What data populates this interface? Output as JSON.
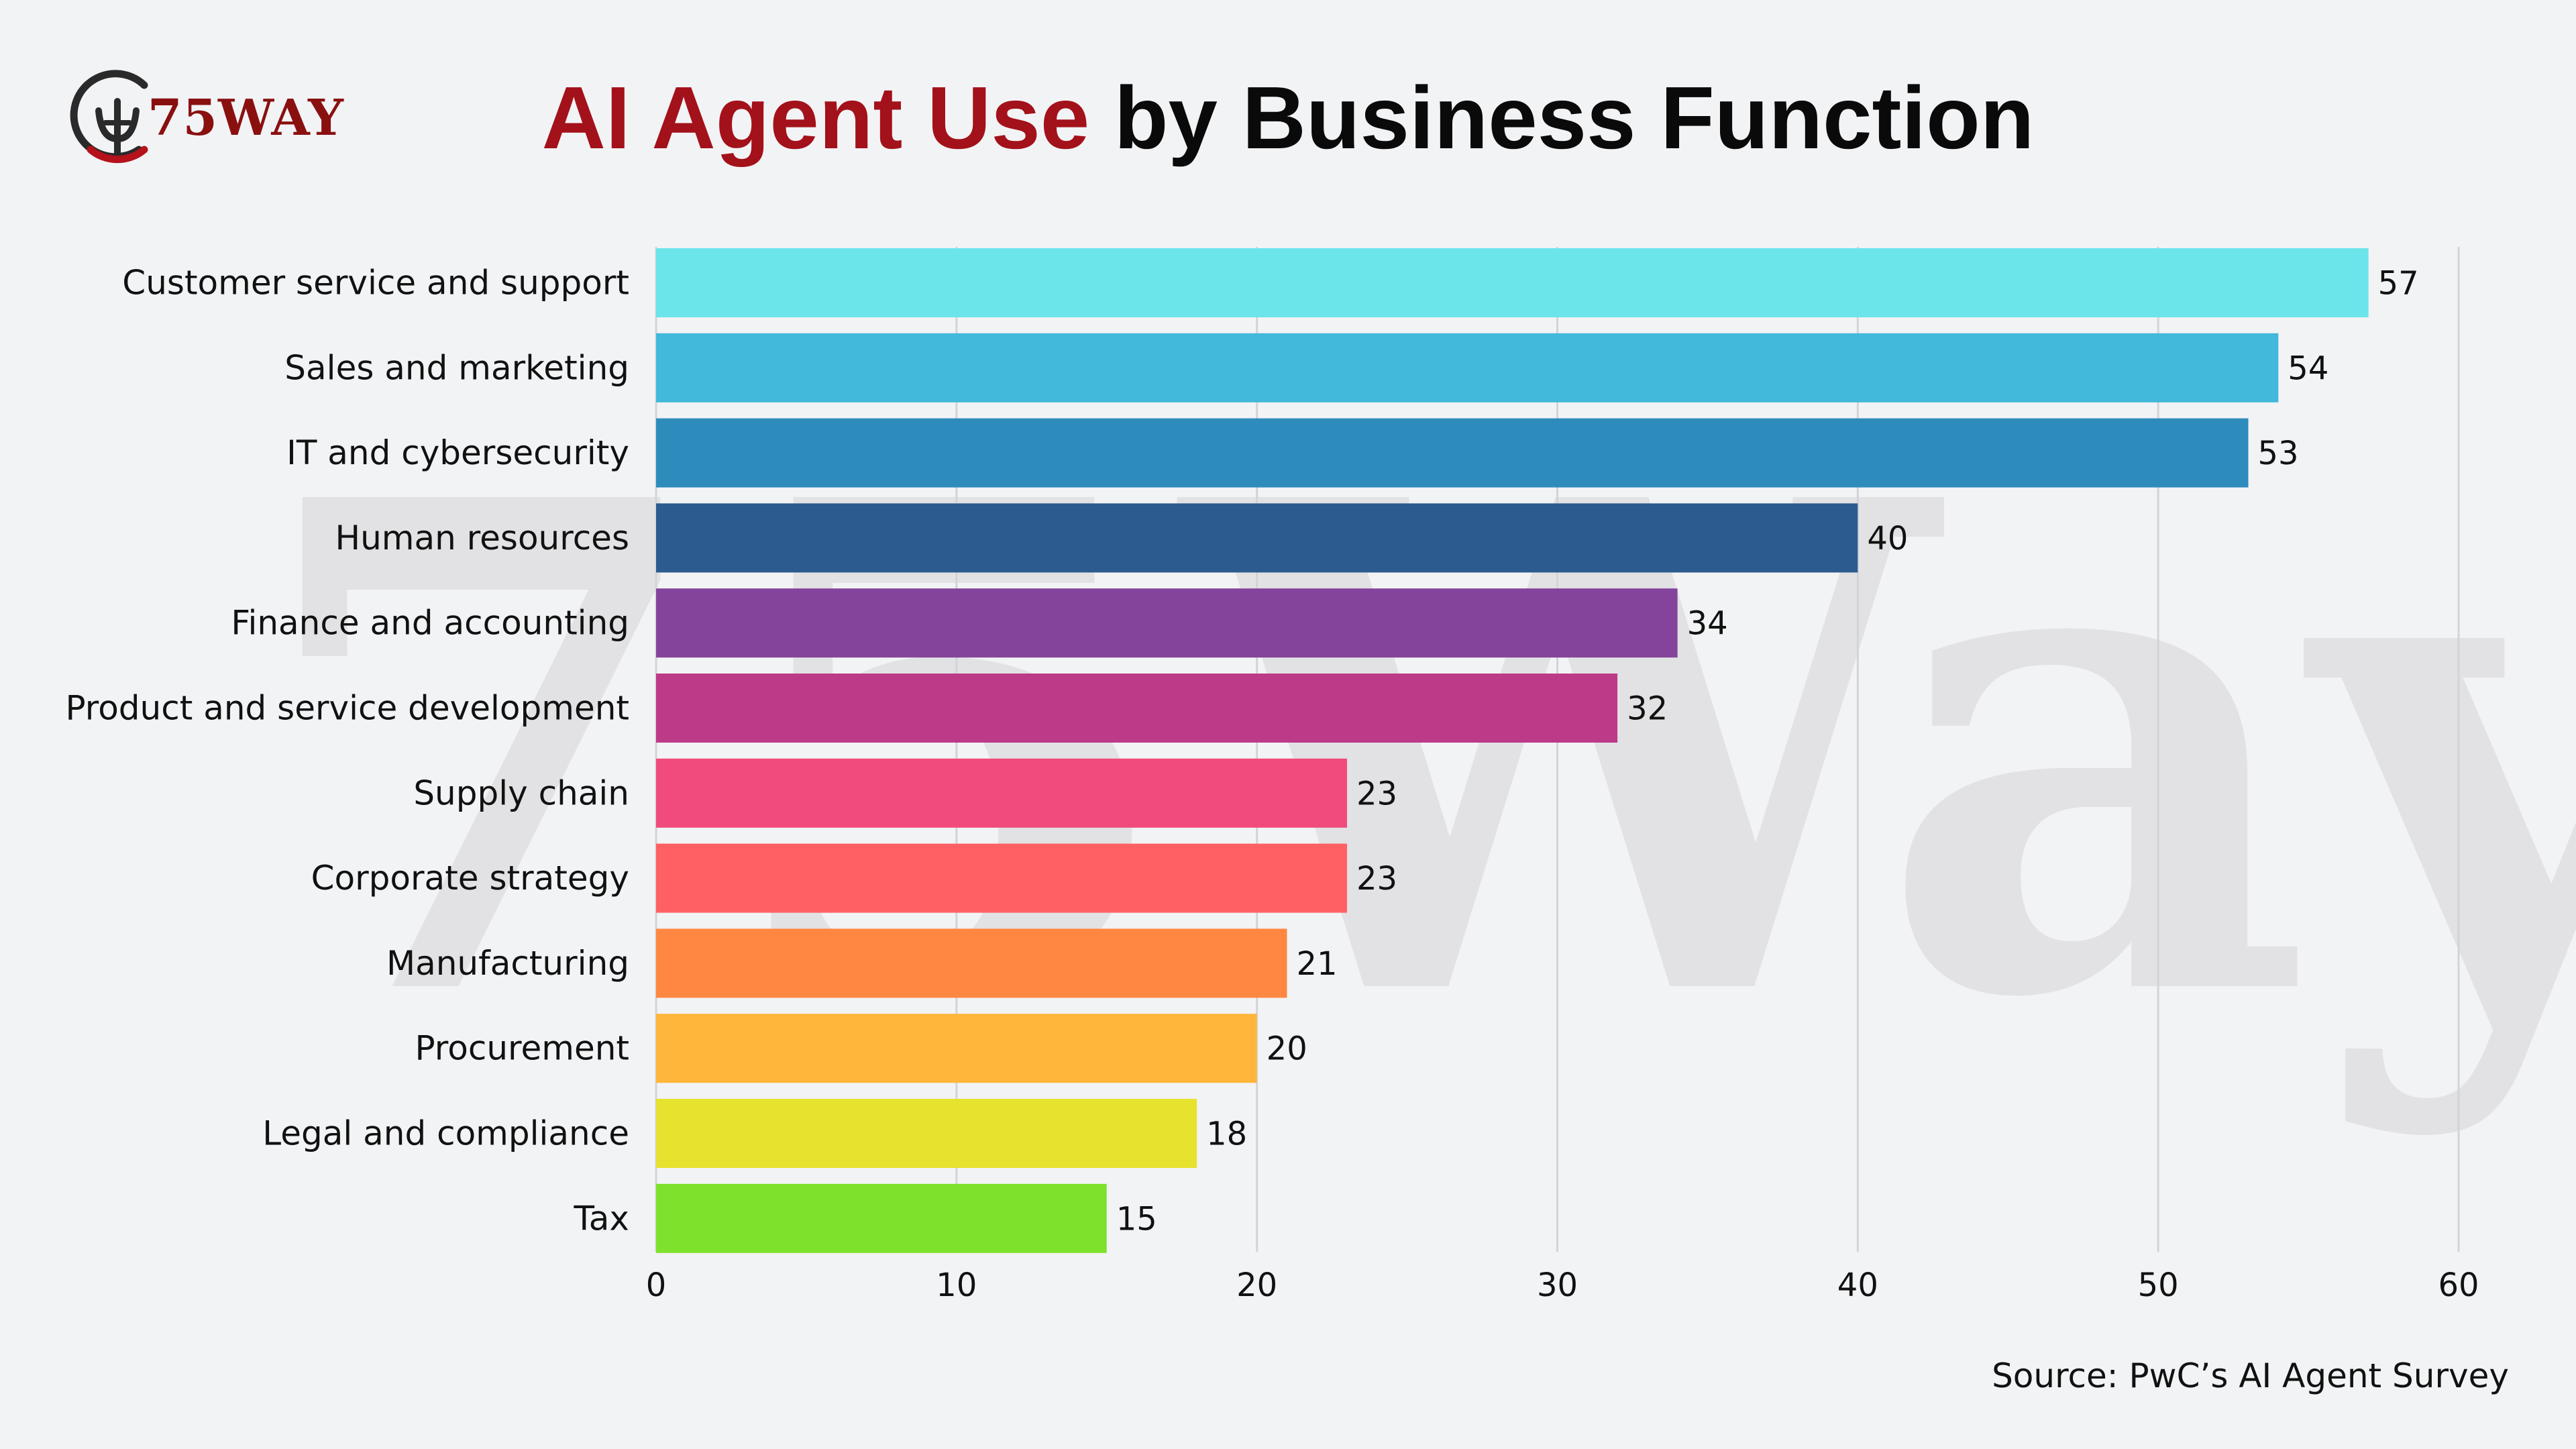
{
  "header": {
    "logo_text": "75WAY",
    "title_accent": "AI Agent Use",
    "title_rest": "by Business Function"
  },
  "watermark": {
    "text": "75Way"
  },
  "source": {
    "text": "Source: PwC’s AI Agent Survey"
  },
  "chart_data": {
    "type": "bar",
    "orientation": "horizontal",
    "title": "AI Agent Use by Business Function",
    "xlabel": "",
    "ylabel": "",
    "xlim": [
      0,
      60
    ],
    "x_ticks": [
      0,
      10,
      20,
      30,
      40,
      50,
      60
    ],
    "grid": "vertical",
    "legend": "none",
    "categories": [
      "Customer service and support",
      "Sales and marketing",
      "IT and cybersecurity",
      "Human resources",
      "Finance and accounting",
      "Product and service development",
      "Supply chain",
      "Corporate strategy",
      "Manufacturing",
      "Procurement",
      "Legal and compliance",
      "Tax"
    ],
    "values": [
      57,
      54,
      53,
      40,
      34,
      32,
      23,
      23,
      21,
      20,
      18,
      15
    ],
    "colors": [
      "#6be4ea",
      "#42b8da",
      "#2d8cbc",
      "#2b5b8f",
      "#84449c",
      "#bd3a88",
      "#f04b7c",
      "#fe6064",
      "#ff8742",
      "#ffb63b",
      "#e6e22e",
      "#7ee12c"
    ]
  }
}
